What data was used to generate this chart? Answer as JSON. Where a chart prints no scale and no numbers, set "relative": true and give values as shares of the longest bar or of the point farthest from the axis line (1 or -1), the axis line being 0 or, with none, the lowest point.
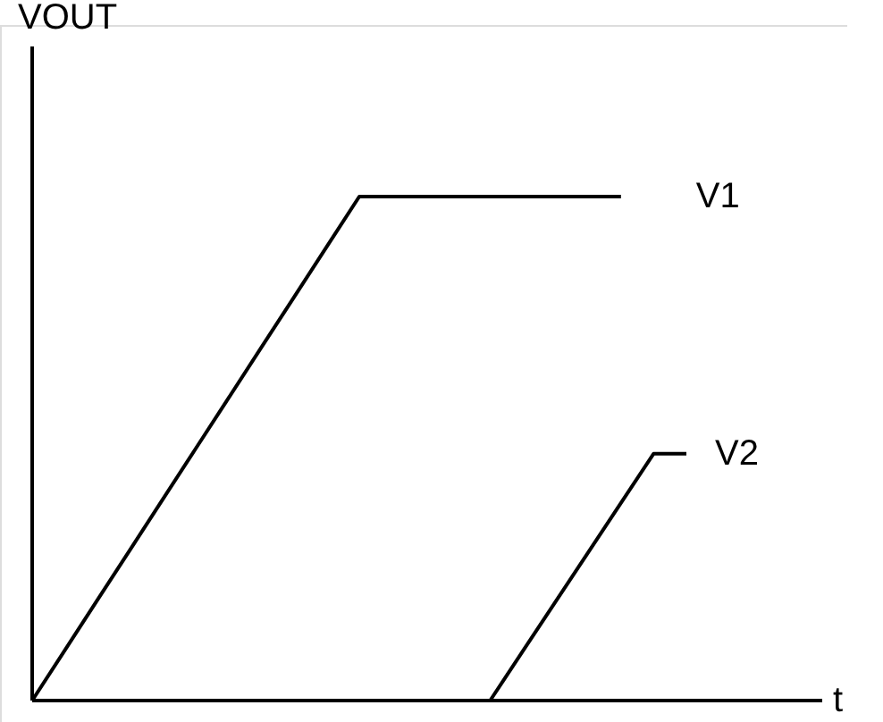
{
  "chart_data": {
    "type": "line",
    "relative": true,
    "xlabel": "t",
    "ylabel": "VOUT",
    "categories": [
      null,
      null,
      null,
      null,
      null,
      null,
      null,
      null,
      null,
      null,
      null,
      null,
      null,
      null,
      null,
      null,
      null,
      null,
      null,
      null,
      null
    ],
    "series": [
      {
        "name": "V1",
        "color": "#000000",
        "values": [
          0,
          0.1,
          0.2,
          0.3,
          0.4,
          0.5,
          0.6,
          0.7,
          0.8,
          0.9,
          1,
          1,
          1,
          1,
          1,
          1,
          1,
          1,
          1,
          null,
          null
        ]
      },
      {
        "name": "V2",
        "color": "#000000",
        "values": [
          0,
          0,
          0,
          0,
          0,
          0,
          0,
          0,
          0,
          0,
          0,
          0,
          0,
          0,
          0,
          0.098,
          0.196,
          0.294,
          0.392,
          0.49,
          0.49
        ]
      }
    ],
    "grid": false,
    "marker": "none",
    "line_style": "solid"
  }
}
